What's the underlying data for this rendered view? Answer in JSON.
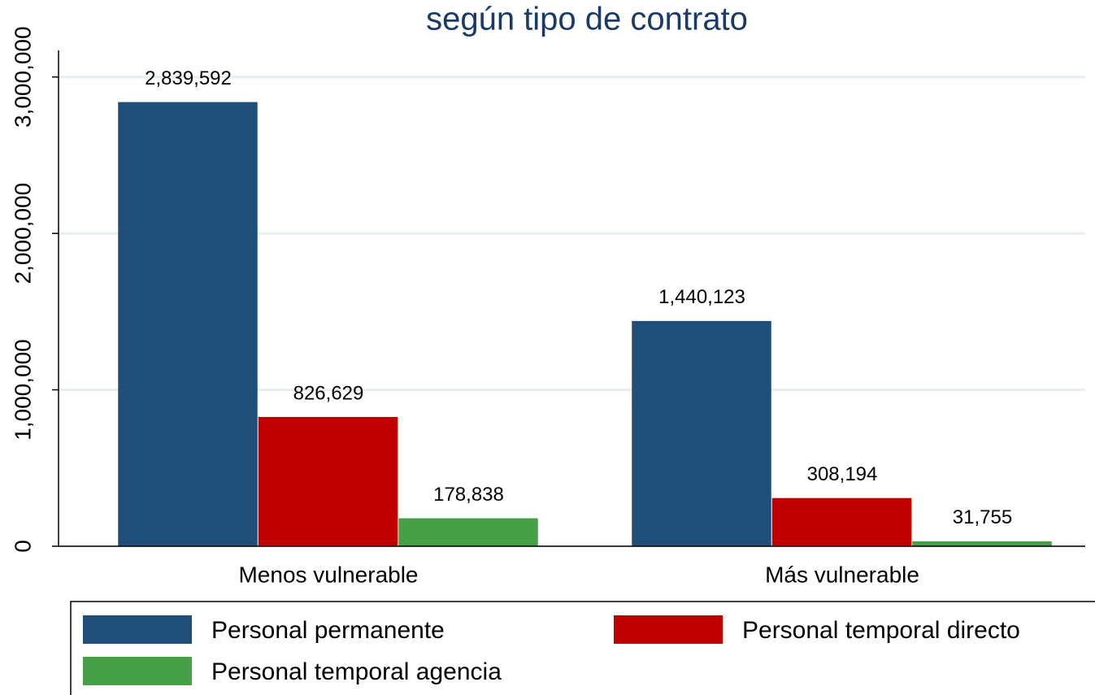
{
  "chart_data": {
    "type": "bar",
    "title": "según tipo de contrato",
    "categories": [
      "Menos vulnerable",
      "Más vulnerable"
    ],
    "series": [
      {
        "name": "Personal permanente",
        "color": "#1f4e79",
        "values": [
          2839592,
          1440123
        ],
        "value_labels": [
          "2,839,592",
          "1,440,123"
        ]
      },
      {
        "name": "Personal temporal directo",
        "color": "#c00000",
        "values": [
          826629,
          308194
        ],
        "value_labels": [
          "826,629",
          "308,194"
        ]
      },
      {
        "name": "Personal temporal agencia",
        "color": "#46a047",
        "values": [
          178838,
          31755
        ],
        "value_labels": [
          "178,838",
          "31,755"
        ]
      }
    ],
    "ylim": [
      0,
      3170000
    ],
    "yticks": [
      0,
      {
        "value": 1000000,
        "label": "1,000,000"
      },
      {
        "value": 2000000,
        "label": "2,000,000"
      },
      {
        "value": 3000000,
        "label": "3,000,000"
      }
    ],
    "grid": true
  }
}
